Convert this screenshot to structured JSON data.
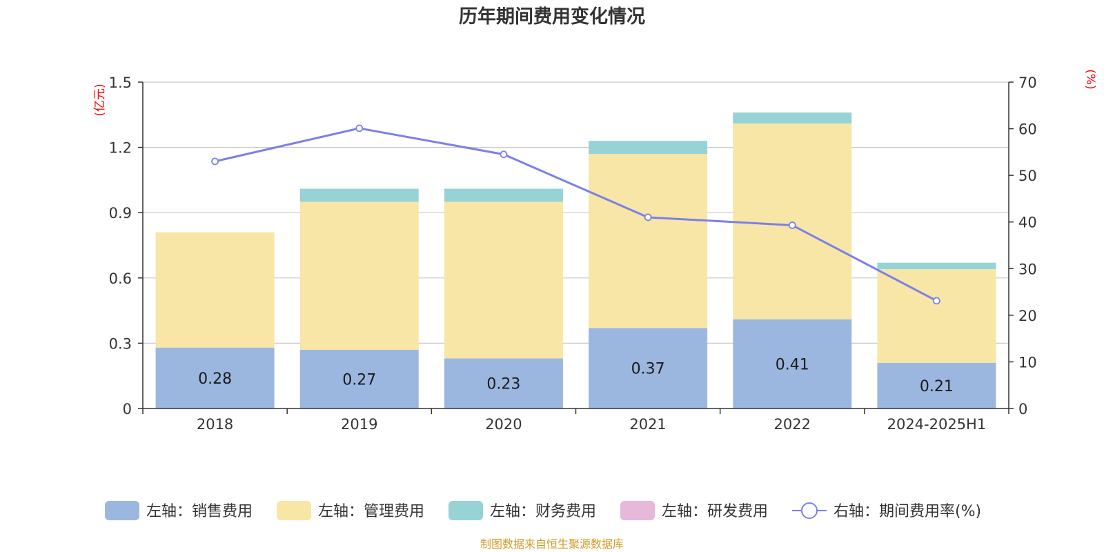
{
  "chart_data": {
    "type": "bar",
    "title": "历年期间费用变化情况",
    "categories": [
      "2018",
      "2019",
      "2020",
      "2021",
      "2022",
      "2024-2025H1"
    ],
    "left_axis": {
      "unit": "(亿元)",
      "ylim": [
        0,
        1.5
      ],
      "ticks": [
        "0",
        "0.3",
        "0.6",
        "0.9",
        "1.2",
        "1.5"
      ]
    },
    "right_axis": {
      "unit": "(%)",
      "ylim": [
        0,
        70
      ],
      "ticks": [
        "0",
        "10",
        "20",
        "30",
        "40",
        "50",
        "60",
        "70"
      ]
    },
    "grid": true,
    "legend_position": "bottom",
    "series": [
      {
        "name": "左轴：销售费用",
        "axis": "left",
        "kind": "bar",
        "color": "#9bb7e0",
        "values": [
          0.28,
          0.27,
          0.23,
          0.37,
          0.41,
          0.21
        ],
        "labels": [
          "0.28",
          "0.27",
          "0.23",
          "0.37",
          "0.41",
          "0.21"
        ]
      },
      {
        "name": "左轴：管理费用",
        "axis": "left",
        "kind": "bar",
        "color": "#f7e6a6",
        "values": [
          0.53,
          0.68,
          0.72,
          0.8,
          0.9,
          0.43
        ]
      },
      {
        "name": "左轴：财务费用",
        "axis": "left",
        "kind": "bar",
        "color": "#96d3d4",
        "values": [
          0.0,
          0.06,
          0.06,
          0.06,
          0.05,
          0.03
        ]
      },
      {
        "name": "左轴：研发费用",
        "axis": "left",
        "kind": "bar",
        "color": "#e6b8da",
        "values": [
          0,
          0,
          0,
          0,
          0,
          0
        ]
      },
      {
        "name": "右轴：期间费用率(%)",
        "axis": "right",
        "kind": "line",
        "color": "#7b7fea",
        "values": [
          53.0,
          60.1,
          54.5,
          41.0,
          39.3,
          23.1
        ]
      }
    ],
    "source": "制图数据来自恒生聚源数据库"
  }
}
